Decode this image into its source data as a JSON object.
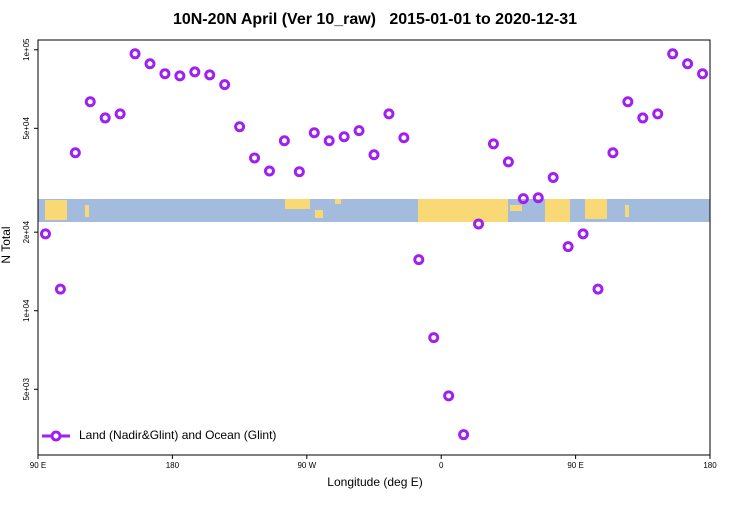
{
  "chart_data": {
    "type": "scatter",
    "title": "10N-20N April (Ver 10_raw)   2015-01-01 to 2020-12-31",
    "xlabel": "Longitude (deg E)",
    "ylabel": "N Total",
    "log_y": true,
    "legend": "bottomleft",
    "xlim": [
      90,
      540
    ],
    "xticks": [
      {
        "value": 90,
        "label": "90 E"
      },
      180,
      {
        "value": 270,
        "label": "90 W"
      },
      {
        "value": 360,
        "label": "0"
      },
      {
        "value": 450,
        "label": "90 E"
      },
      {
        "value": 540,
        "label": "180"
      }
    ],
    "ylim": [
      2800,
      109000
    ],
    "yticks": [
      {
        "value": 5000,
        "label": "5e+03"
      },
      {
        "value": 10000,
        "label": "1e+04"
      },
      {
        "value": 20000,
        "label": "2e+04"
      },
      {
        "value": 50000,
        "label": "5e+04"
      },
      {
        "value": 100000,
        "label": "1e+05"
      }
    ],
    "series": [
      {
        "name": "Land (Nadir&Glint) and Ocean (Glint)",
        "color": "#a020f0",
        "x": [
          95,
          105,
          115,
          125,
          135,
          145,
          155,
          165,
          175,
          185,
          195,
          205,
          215,
          225,
          235,
          245,
          255,
          265,
          275,
          285,
          295,
          305,
          315,
          325,
          335,
          345,
          355,
          365,
          375,
          385,
          395,
          405,
          415,
          425,
          435,
          445,
          455,
          465,
          475,
          485,
          495,
          505,
          515,
          525,
          535
        ],
        "values": [
          19700,
          12100,
          40300,
          63200,
          54800,
          56800,
          96500,
          88400,
          80900,
          79400,
          82300,
          80100,
          73500,
          50700,
          38500,
          34300,
          44800,
          34100,
          48100,
          44800,
          46400,
          49000,
          39600,
          56800,
          46000,
          15700,
          7890,
          4720,
          3350,
          21500,
          43600,
          37200,
          26900,
          27100,
          32400,
          17600,
          19700,
          12100,
          40300,
          63200,
          54800,
          56800,
          96500,
          88400,
          80900
        ]
      }
    ]
  }
}
